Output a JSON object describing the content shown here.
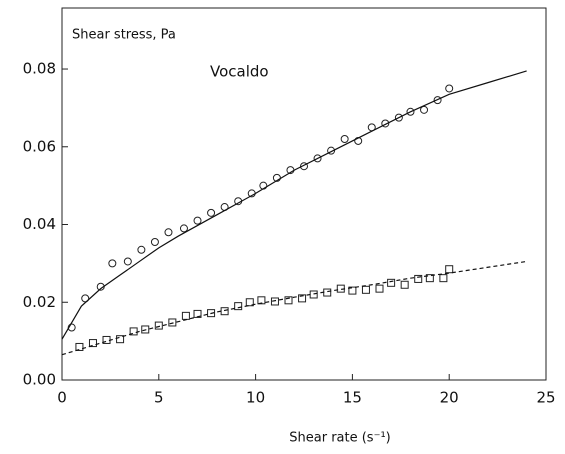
{
  "chart_data": {
    "type": "scatter",
    "y_label": "Shear stress, Pa",
    "x_label": "Shear rate (s⁻¹)",
    "annotation": "Vocaldo",
    "xlim": [
      0,
      25
    ],
    "ylim": [
      0,
      0.0957
    ],
    "xticks": [
      0,
      5,
      10,
      15,
      20,
      25
    ],
    "yticks": [
      {
        "value": 0,
        "label": "0.00"
      },
      {
        "value": 0.02,
        "label": "0.02"
      },
      {
        "value": 0.04,
        "label": "0.04"
      },
      {
        "value": 0.06,
        "label": "0.06"
      },
      {
        "value": 0.08,
        "label": "0.08"
      }
    ],
    "series": [
      {
        "color": "#222222",
        "marker": "circle",
        "x": [
          0.5,
          1.2,
          2.0,
          2.6,
          3.4,
          4.1,
          4.8,
          5.5,
          6.3,
          7.0,
          7.7,
          8.4,
          9.1,
          9.8,
          10.4,
          11.1,
          11.8,
          12.5,
          13.2,
          13.9,
          14.6,
          15.3,
          16.0,
          16.7,
          17.4,
          18.0,
          18.7,
          19.4,
          20.0
        ],
        "values": [
          0.0135,
          0.021,
          0.024,
          0.03,
          0.0305,
          0.0335,
          0.0355,
          0.038,
          0.039,
          0.041,
          0.043,
          0.0445,
          0.046,
          0.048,
          0.05,
          0.052,
          0.054,
          0.055,
          0.057,
          0.059,
          0.062,
          0.0615,
          0.065,
          0.066,
          0.0675,
          0.069,
          0.0695,
          0.072,
          0.075
        ]
      },
      {
        "color": "#222222",
        "marker": "square",
        "x": [
          0.9,
          1.6,
          2.3,
          3.0,
          3.7,
          4.3,
          5.0,
          5.7,
          6.4,
          7.0,
          7.7,
          8.4,
          9.1,
          9.7,
          10.3,
          11.0,
          11.7,
          12.4,
          13.0,
          13.7,
          14.4,
          15.0,
          15.7,
          16.4,
          17.0,
          17.7,
          18.4,
          19.0,
          19.7,
          20.0
        ],
        "values": [
          0.0085,
          0.0095,
          0.0103,
          0.0105,
          0.0125,
          0.013,
          0.014,
          0.0148,
          0.0165,
          0.017,
          0.0172,
          0.0177,
          0.019,
          0.02,
          0.0205,
          0.0202,
          0.0205,
          0.021,
          0.022,
          0.0225,
          0.0235,
          0.023,
          0.0232,
          0.0235,
          0.025,
          0.0245,
          0.026,
          0.0262,
          0.0262,
          0.0285
        ]
      },
      {
        "color": "#111111",
        "line": "solid",
        "x": [
          0,
          1,
          2,
          3,
          4,
          5,
          6,
          8,
          10,
          12,
          14,
          16,
          18,
          20,
          22,
          24
        ],
        "values": [
          0.0105,
          0.019,
          0.0235,
          0.027,
          0.0305,
          0.034,
          0.037,
          0.0425,
          0.048,
          0.054,
          0.059,
          0.064,
          0.069,
          0.0735,
          0.0765,
          0.0795
        ]
      },
      {
        "color": "#111111",
        "line": "dashed",
        "x": [
          0,
          2,
          4,
          6,
          8,
          10,
          12,
          14,
          16,
          18,
          20,
          22,
          24
        ],
        "values": [
          0.0065,
          0.0095,
          0.0125,
          0.015,
          0.0175,
          0.0195,
          0.0213,
          0.023,
          0.0245,
          0.0262,
          0.0275,
          0.029,
          0.0305
        ]
      }
    ]
  }
}
